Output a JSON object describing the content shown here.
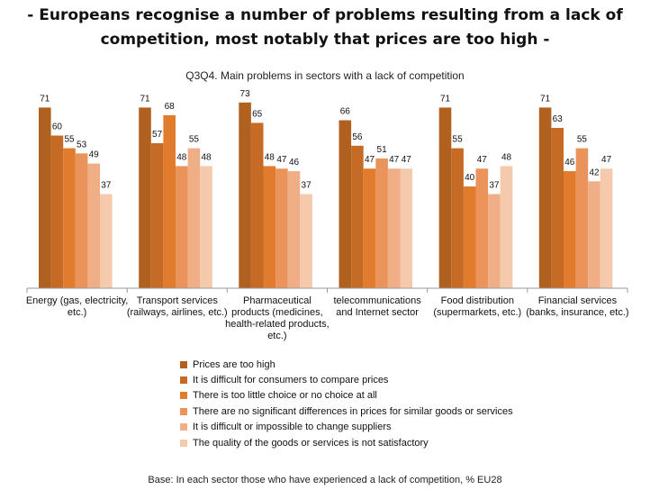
{
  "headline": {
    "line1": "- Europeans recognise a number of problems resulting from a lack of",
    "line2": "competition, most notably that prices are too high -"
  },
  "chart_data": {
    "type": "bar",
    "title": "Q3Q4. Main problems in sectors with a lack of competition",
    "categories": [
      [
        "Energy (gas, electricity,",
        "etc.)"
      ],
      [
        "Transport services",
        "(railways, airlines, etc.)"
      ],
      [
        "Pharmaceutical",
        "products (medicines,",
        "health-related products,",
        "etc.)"
      ],
      [
        "telecommunications",
        "and Internet sector"
      ],
      [
        "Food distribution",
        "(supermarkets, etc.)"
      ],
      [
        "Financial services",
        "(banks, insurance, etc.)"
      ]
    ],
    "series": [
      {
        "name": "Prices are too high",
        "color": "#b0601f",
        "values": [
          71,
          71,
          73,
          66,
          71,
          71
        ]
      },
      {
        "name": "It is difficult for consumers to compare prices",
        "color": "#c66b26",
        "values": [
          60,
          57,
          65,
          56,
          55,
          63
        ]
      },
      {
        "name": "There is too little choice or no choice at all",
        "color": "#e17c2f",
        "values": [
          55,
          68,
          48,
          47,
          40,
          46
        ]
      },
      {
        "name": "There are no significant differences in prices for similar goods or services",
        "color": "#ea935a",
        "values": [
          53,
          48,
          47,
          51,
          47,
          55
        ]
      },
      {
        "name": "It is difficult or impossible to change suppliers",
        "color": "#efae86",
        "values": [
          49,
          55,
          46,
          47,
          37,
          42
        ]
      },
      {
        "name": "The quality of the goods or services is not satisfactory",
        "color": "#f5c9ab",
        "values": [
          37,
          48,
          37,
          47,
          48,
          47
        ]
      }
    ],
    "ylim": [
      0,
      80
    ],
    "xlabel": "",
    "ylabel": "",
    "grid": false,
    "legend_position": "bottom"
  },
  "base_note": "Base: In each sector those who have experienced a lack of competition, % EU28"
}
